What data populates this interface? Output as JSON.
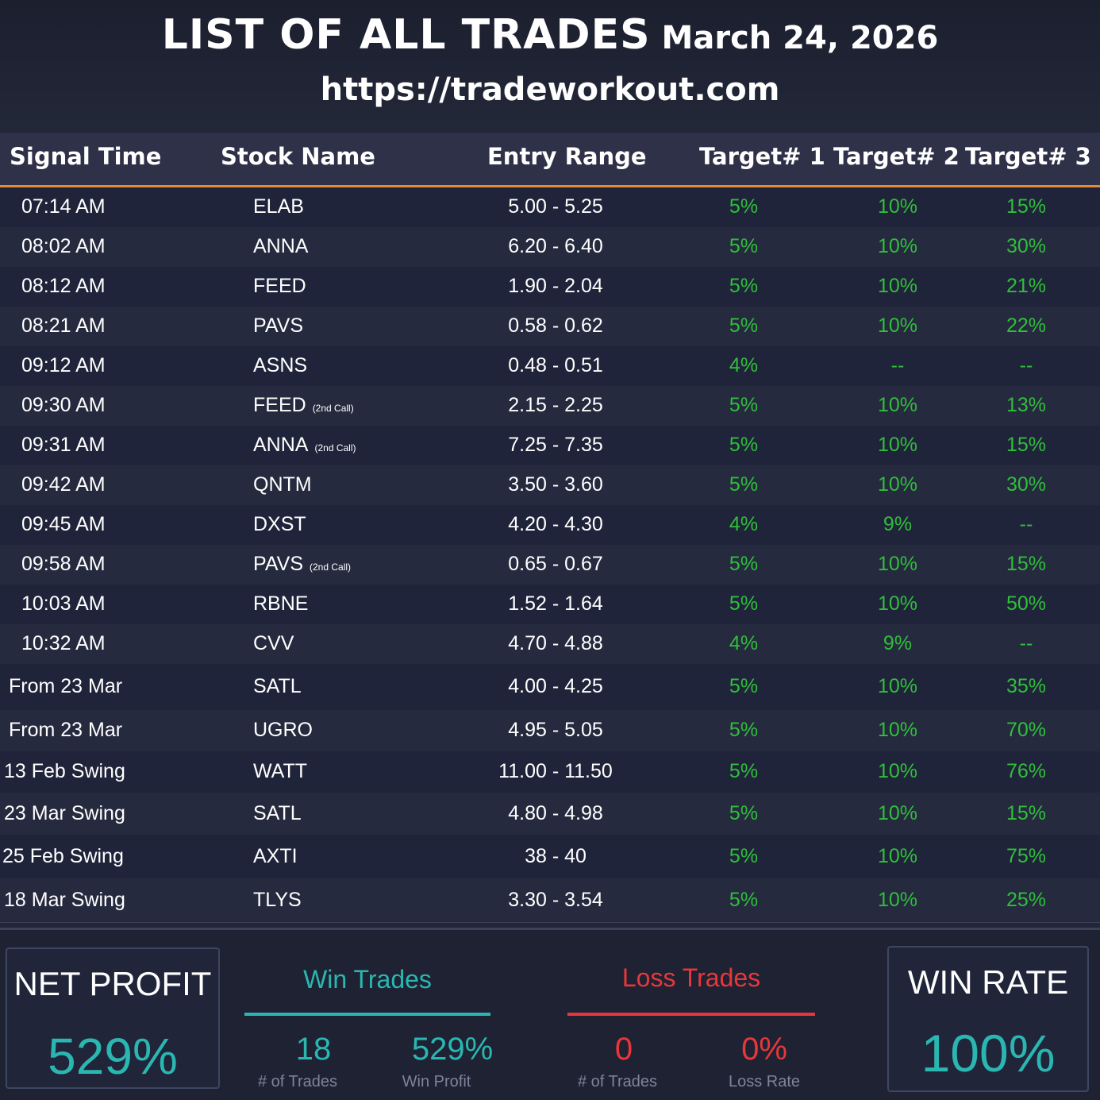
{
  "header": {
    "title": "LIST OF ALL TRADES",
    "date": "March 24, 2026",
    "url": "https://tradeworkout.com"
  },
  "columns": {
    "signal_time": "Signal Time",
    "stock_name": "Stock Name",
    "entry_range": "Entry Range",
    "target1": "Target# 1",
    "target2": "Target# 2",
    "target3": "Target# 3"
  },
  "trades": [
    {
      "time": "07:14 AM",
      "stock": "ELAB",
      "note": "",
      "entry": "5.00 - 5.25",
      "t1": "5%",
      "t2": "10%",
      "t3": "15%"
    },
    {
      "time": "08:02 AM",
      "stock": "ANNA",
      "note": "",
      "entry": "6.20 - 6.40",
      "t1": "5%",
      "t2": "10%",
      "t3": "30%"
    },
    {
      "time": "08:12 AM",
      "stock": "FEED",
      "note": "",
      "entry": "1.90 - 2.04",
      "t1": "5%",
      "t2": "10%",
      "t3": "21%"
    },
    {
      "time": "08:21 AM",
      "stock": "PAVS",
      "note": "",
      "entry": "0.58 - 0.62",
      "t1": "5%",
      "t2": "10%",
      "t3": "22%"
    },
    {
      "time": "09:12 AM",
      "stock": "ASNS",
      "note": "",
      "entry": "0.48 - 0.51",
      "t1": "4%",
      "t2": "--",
      "t3": "--"
    },
    {
      "time": "09:30 AM",
      "stock": "FEED",
      "note": "(2nd Call)",
      "entry": "2.15 - 2.25",
      "t1": "5%",
      "t2": "10%",
      "t3": "13%"
    },
    {
      "time": "09:31 AM",
      "stock": "ANNA",
      "note": "(2nd Call)",
      "entry": "7.25 - 7.35",
      "t1": "5%",
      "t2": "10%",
      "t3": "15%"
    },
    {
      "time": "09:42 AM",
      "stock": "QNTM",
      "note": "",
      "entry": "3.50 - 3.60",
      "t1": "5%",
      "t2": "10%",
      "t3": "30%"
    },
    {
      "time": "09:45 AM",
      "stock": "DXST",
      "note": "",
      "entry": "4.20 - 4.30",
      "t1": "4%",
      "t2": "9%",
      "t3": "--"
    },
    {
      "time": "09:58 AM",
      "stock": "PAVS",
      "note": "(2nd Call)",
      "entry": "0.65 - 0.67",
      "t1": "5%",
      "t2": "10%",
      "t3": "15%"
    },
    {
      "time": "10:03 AM",
      "stock": "RBNE",
      "note": "",
      "entry": "1.52 - 1.64",
      "t1": "5%",
      "t2": "10%",
      "t3": "50%"
    },
    {
      "time": "10:32 AM",
      "stock": "CVV",
      "note": "",
      "entry": "4.70 - 4.88",
      "t1": "4%",
      "t2": "9%",
      "t3": "--"
    },
    {
      "time": "From 23 Mar",
      "stock": "SATL",
      "note": "",
      "entry": "4.00 - 4.25",
      "t1": "5%",
      "t2": "10%",
      "t3": "35%"
    },
    {
      "time": "From 23 Mar",
      "stock": "UGRO",
      "note": "",
      "entry": "4.95 - 5.05",
      "t1": "5%",
      "t2": "10%",
      "t3": "70%"
    },
    {
      "time": "13 Feb Swing",
      "stock": "WATT",
      "note": "",
      "entry": "11.00 - 11.50",
      "t1": "5%",
      "t2": "10%",
      "t3": "76%"
    },
    {
      "time": "23 Mar Swing",
      "stock": "SATL",
      "note": "",
      "entry": "4.80 - 4.98",
      "t1": "5%",
      "t2": "10%",
      "t3": "15%"
    },
    {
      "time": "25 Feb Swing",
      "stock": "AXTI",
      "note": "",
      "entry": "38 - 40",
      "t1": "5%",
      "t2": "10%",
      "t3": "75%"
    },
    {
      "time": "18 Mar Swing",
      "stock": "TLYS",
      "note": "",
      "entry": "3.30 - 3.54",
      "t1": "5%",
      "t2": "10%",
      "t3": "25%"
    }
  ],
  "summary": {
    "net_profit_label": "NET PROFIT",
    "net_profit_value": "529%",
    "win_trades_label": "Win Trades",
    "win_trades_count": "18",
    "win_trades_count_label": "# of Trades",
    "win_profit": "529%",
    "win_profit_label": "Win Profit",
    "loss_trades_label": "Loss Trades",
    "loss_trades_count": "0",
    "loss_trades_count_label": "# of Trades",
    "loss_rate": "0%",
    "loss_rate_label": "Loss Rate",
    "win_rate_label": "WIN RATE",
    "win_rate_value": "100%"
  },
  "colors": {
    "accent_orange": "#e8893a",
    "target_green": "#2fbf3a",
    "teal": "#2ab7b1",
    "loss_red": "#e8373a"
  }
}
